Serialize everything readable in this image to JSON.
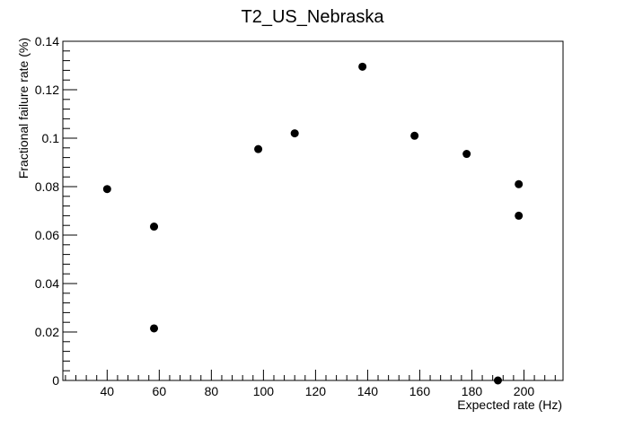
{
  "chart_data": {
    "type": "scatter",
    "title": "T2_US_Nebraska",
    "xlabel": "Expected rate (Hz)",
    "ylabel": "Fractional failure rate (%)",
    "xlim": [
      23,
      215
    ],
    "ylim": [
      0,
      0.14
    ],
    "x_ticks": [
      40,
      60,
      80,
      100,
      120,
      140,
      160,
      180,
      200
    ],
    "y_ticks": [
      0,
      0.02,
      0.04,
      0.06,
      0.08,
      0.1,
      0.12,
      0.14
    ],
    "grid": false,
    "marker_color": "#000000",
    "points": [
      {
        "x": 40,
        "y": 0.079
      },
      {
        "x": 58,
        "y": 0.0635
      },
      {
        "x": 58,
        "y": 0.0215
      },
      {
        "x": 98,
        "y": 0.0955
      },
      {
        "x": 112,
        "y": 0.102
      },
      {
        "x": 138,
        "y": 0.1295
      },
      {
        "x": 158,
        "y": 0.101
      },
      {
        "x": 178,
        "y": 0.0935
      },
      {
        "x": 190,
        "y": 0.0
      },
      {
        "x": 198,
        "y": 0.081
      },
      {
        "x": 198,
        "y": 0.068
      }
    ]
  }
}
